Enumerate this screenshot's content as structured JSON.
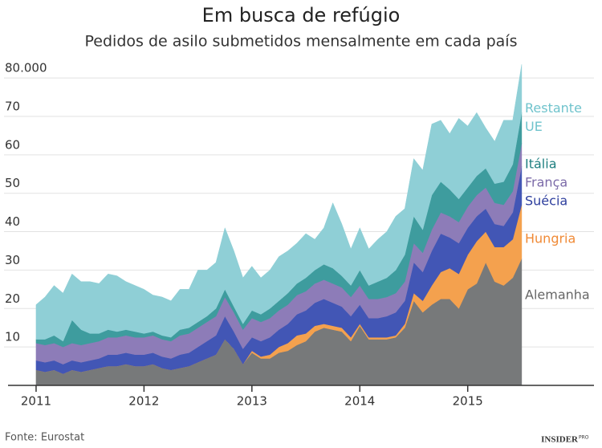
{
  "chart_data": {
    "type": "stacked-area",
    "title": "Em busca de refúgio",
    "subtitle": "Pedidos de asilo submetidos mensalmente em cada país",
    "source": "Fonte: Eurostat",
    "logo": {
      "text": "INSIDER",
      "suffix": "PRO"
    },
    "x": [
      2011,
      2011.083,
      2011.167,
      2011.25,
      2011.333,
      2011.417,
      2011.5,
      2011.583,
      2011.667,
      2011.75,
      2011.833,
      2011.917,
      2012,
      2012.083,
      2012.167,
      2012.25,
      2012.333,
      2012.417,
      2012.5,
      2012.583,
      2012.667,
      2012.75,
      2012.833,
      2012.917,
      2013,
      2013.083,
      2013.167,
      2013.25,
      2013.333,
      2013.417,
      2013.5,
      2013.583,
      2013.667,
      2013.75,
      2013.833,
      2013.917,
      2014,
      2014.083,
      2014.167,
      2014.25,
      2014.333,
      2014.417,
      2014.5,
      2014.583,
      2014.667,
      2014.75,
      2014.833,
      2014.917,
      2015,
      2015.083,
      2015.167,
      2015.25,
      2015.333,
      2015.417,
      2015.5
    ],
    "xlim": [
      2010.74,
      2016.17
    ],
    "xticks": [
      2011,
      2012,
      2013,
      2014,
      2015
    ],
    "ylim": [
      0,
      84
    ],
    "yticks": [
      10,
      20,
      30,
      40,
      50,
      60,
      70,
      {
        "value": 80,
        "label": "80.000"
      }
    ],
    "grid": true,
    "series": [
      {
        "name": "Alemanha",
        "color": "#77797a",
        "label_color": "#666666",
        "values": [
          4,
          3.5,
          4,
          3,
          4,
          3.5,
          4,
          4.5,
          5,
          5,
          5.5,
          5,
          5,
          5.5,
          4.5,
          4,
          4.5,
          5,
          6,
          7,
          8,
          12,
          9.5,
          5.5,
          8.5,
          7,
          7,
          8.5,
          9,
          10.5,
          11.5,
          14,
          15,
          14.5,
          14,
          11.5,
          15.5,
          12,
          12,
          12,
          12.5,
          15,
          22,
          19,
          21,
          22.5,
          22.5,
          20,
          25,
          26.5,
          32,
          27,
          26,
          28,
          33
        ]
      },
      {
        "name": "Hungria",
        "color": "#f4a14e",
        "label_color": "#f08a36",
        "values": [
          0,
          0,
          0,
          0,
          0,
          0,
          0,
          0,
          0,
          0,
          0,
          0,
          0,
          0,
          0,
          0,
          0,
          0,
          0,
          0,
          0,
          0,
          0,
          0,
          0.5,
          0.5,
          1,
          1.5,
          2,
          2.5,
          2,
          1.5,
          1,
          1,
          1,
          1,
          0.5,
          0.5,
          0.5,
          0.5,
          0.5,
          1,
          2,
          3,
          5,
          7,
          8,
          9,
          9,
          11,
          8,
          9,
          10,
          10,
          14
        ]
      },
      {
        "name": "Suécia",
        "color": "#4256b5",
        "label_color": "#2e3f9e",
        "values": [
          2.5,
          2.5,
          2.5,
          2.5,
          2.5,
          2.5,
          2.5,
          2.5,
          3,
          3,
          3,
          3,
          3,
          3,
          3,
          3,
          3.5,
          3.5,
          4,
          4.5,
          5,
          6,
          4.5,
          4,
          3.5,
          4,
          4.5,
          4.5,
          5,
          5.5,
          6,
          6,
          6.5,
          6,
          5.5,
          5.5,
          5,
          5,
          5,
          5.5,
          6,
          6,
          8,
          7.5,
          9,
          10,
          8,
          8,
          7,
          6.5,
          6,
          6,
          5.5,
          7,
          10
        ]
      },
      {
        "name": "França",
        "color": "#8d7cb8",
        "label_color": "#7b6aa8",
        "values": [
          4.5,
          4.5,
          4.5,
          4.5,
          4.5,
          4.5,
          4.5,
          4.5,
          4.5,
          4.5,
          4.5,
          4.5,
          4.5,
          4.5,
          4.5,
          4.5,
          5,
          5,
          5,
          5,
          5,
          5,
          5,
          5,
          5,
          5,
          5,
          5,
          5,
          5,
          5,
          5,
          5,
          5,
          5,
          5,
          5,
          5,
          5,
          5,
          5,
          5,
          5,
          5,
          5.5,
          5.5,
          5.5,
          5.5,
          5.5,
          5.5,
          5.5,
          5.5,
          5.5,
          5.5,
          6
        ]
      },
      {
        "name": "Itália",
        "color": "#3e9c9e",
        "label_color": "#1f7f80",
        "values": [
          1,
          1.5,
          2,
          1.5,
          6,
          4,
          2.5,
          2,
          2,
          1.5,
          1.5,
          1.5,
          1,
          1,
          1,
          1,
          1.5,
          1.5,
          1.5,
          1.5,
          2,
          2,
          1.5,
          1.5,
          2,
          2,
          2.5,
          2.5,
          3,
          3,
          3.5,
          3.5,
          4,
          4,
          3,
          3,
          4,
          3.5,
          4.5,
          5,
          6,
          7,
          7,
          6,
          9,
          8,
          7,
          6,
          5,
          5,
          5,
          5,
          6,
          7,
          8
        ]
      },
      {
        "name": "Restante UE",
        "color": "#8fcfd6",
        "label_color": "#6fc3cc",
        "values": [
          9,
          11,
          13,
          12.5,
          12,
          12.5,
          13.5,
          13,
          14.5,
          14.5,
          12.5,
          12,
          11.5,
          9.5,
          10,
          9.5,
          10.5,
          10,
          13.5,
          12,
          12,
          16,
          14.5,
          12,
          11.5,
          9.5,
          10,
          11.5,
          11,
          10.5,
          11.5,
          8,
          9.5,
          17,
          13.5,
          9.5,
          11,
          9.5,
          11,
          12,
          14,
          12,
          15,
          15.5,
          18.5,
          16,
          14.5,
          21,
          16,
          16.5,
          10.5,
          11,
          16,
          11.5,
          12.5
        ]
      }
    ]
  }
}
